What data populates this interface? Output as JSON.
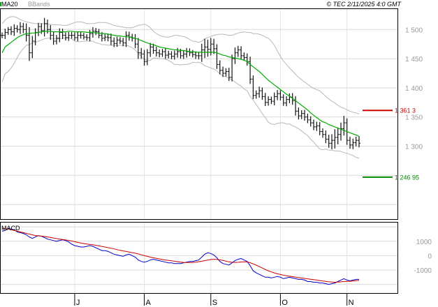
{
  "chart_data": [
    {
      "type": "ohlc",
      "title": "",
      "legend": {
        "ma_label": "MA20",
        "bb_label": "BBands"
      },
      "credit": "© TEC 2/11/2025 4:0 GMT",
      "x_ticks": [
        {
          "label": "J",
          "index": 24
        },
        {
          "label": "A",
          "index": 47
        },
        {
          "label": "S",
          "index": 69
        },
        {
          "label": "O",
          "index": 92
        },
        {
          "label": "N",
          "index": 114
        }
      ],
      "y_ticks": [
        {
          "label": "1 500",
          "value": 1.5
        },
        {
          "label": "1 450",
          "value": 1.45
        },
        {
          "label": "1 400",
          "value": 1.4
        },
        {
          "label": "1 350",
          "value": 1.35
        },
        {
          "label": "1 300",
          "value": 1.3
        }
      ],
      "ylim": [
        1.175,
        1.535
      ],
      "markers": [
        {
          "label": "1 361 3",
          "value": 1.3613,
          "color": "#cc0000"
        },
        {
          "label": "1 246 95",
          "value": 1.24695,
          "color": "#008800"
        }
      ],
      "series": {
        "close": [
          1.49,
          1.495,
          1.5,
          1.496,
          1.502,
          1.5,
          1.505,
          1.5,
          1.49,
          1.46,
          1.48,
          1.495,
          1.505,
          1.498,
          1.51,
          1.5,
          1.49,
          1.48,
          1.485,
          1.495,
          1.49,
          1.486,
          1.49,
          1.49,
          1.486,
          1.49,
          1.49,
          1.487,
          1.486,
          1.493,
          1.497,
          1.496,
          1.49,
          1.485,
          1.487,
          1.486,
          1.48,
          1.476,
          1.482,
          1.48,
          1.477,
          1.49,
          1.487,
          1.485,
          1.475,
          1.46,
          1.458,
          1.445,
          1.46,
          1.47,
          1.464,
          1.46,
          1.458,
          1.462,
          1.456,
          1.458,
          1.454,
          1.458,
          1.462,
          1.455,
          1.458,
          1.462,
          1.46,
          1.457,
          1.455,
          1.455,
          1.465,
          1.47,
          1.466,
          1.475,
          1.467,
          1.44,
          1.43,
          1.425,
          1.428,
          1.418,
          1.45,
          1.46,
          1.465,
          1.455,
          1.452,
          1.445,
          1.415,
          1.387,
          1.39,
          1.395,
          1.385,
          1.375,
          1.38,
          1.377,
          1.385,
          1.39,
          1.384,
          1.374,
          1.38,
          1.384,
          1.378,
          1.36,
          1.352,
          1.356,
          1.35,
          1.345,
          1.34,
          1.333,
          1.335,
          1.325,
          1.32,
          1.312,
          1.305,
          1.31,
          1.315,
          1.32,
          1.33,
          1.34,
          1.31,
          1.302,
          1.306,
          1.31,
          1.305
        ],
        "ma20": [
          1.46,
          1.47,
          1.474,
          1.478,
          1.482,
          1.486,
          1.489,
          1.491,
          1.493,
          1.493,
          1.494,
          1.494,
          1.495,
          1.496,
          1.497,
          1.497,
          1.497,
          1.496,
          1.496,
          1.496,
          1.496,
          1.496,
          1.497,
          1.497,
          1.496,
          1.496,
          1.496,
          1.496,
          1.495,
          1.495,
          1.495,
          1.494,
          1.494,
          1.493,
          1.493,
          1.492,
          1.491,
          1.49,
          1.489,
          1.489,
          1.488,
          1.488,
          1.487,
          1.486,
          1.485,
          1.483,
          1.481,
          1.479,
          1.477,
          1.475,
          1.474,
          1.472,
          1.47,
          1.469,
          1.468,
          1.467,
          1.466,
          1.465,
          1.465,
          1.464,
          1.464,
          1.463,
          1.462,
          1.462,
          1.461,
          1.461,
          1.461,
          1.461,
          1.461,
          1.461,
          1.461,
          1.46,
          1.458,
          1.456,
          1.455,
          1.453,
          1.452,
          1.451,
          1.45,
          1.449,
          1.447,
          1.445,
          1.44,
          1.436,
          1.432,
          1.428,
          1.423,
          1.418,
          1.413,
          1.409,
          1.405,
          1.401,
          1.397,
          1.393,
          1.389,
          1.386,
          1.382,
          1.378,
          1.374,
          1.37,
          1.366,
          1.362,
          1.357,
          1.353,
          1.349,
          1.345,
          1.342,
          1.34,
          1.337,
          1.335,
          1.333,
          1.331,
          1.329,
          1.327,
          1.325,
          1.323,
          1.321,
          1.319,
          1.317
        ],
        "bb_upper": [
          1.51,
          1.516,
          1.52,
          1.522,
          1.522,
          1.52,
          1.517,
          1.515,
          1.513,
          1.512,
          1.511,
          1.51,
          1.51,
          1.51,
          1.51,
          1.509,
          1.509,
          1.508,
          1.508,
          1.508,
          1.507,
          1.507,
          1.508,
          1.51,
          1.512,
          1.513,
          1.513,
          1.512,
          1.51,
          1.51,
          1.51,
          1.511,
          1.512,
          1.512,
          1.512,
          1.511,
          1.509,
          1.507,
          1.506,
          1.505,
          1.504,
          1.503,
          1.503,
          1.503,
          1.505,
          1.507,
          1.508,
          1.509,
          1.507,
          1.503,
          1.497,
          1.493,
          1.49,
          1.488,
          1.487,
          1.487,
          1.488,
          1.49,
          1.49,
          1.489,
          1.488,
          1.486,
          1.483,
          1.48,
          1.479,
          1.478,
          1.48,
          1.484,
          1.486,
          1.488,
          1.49,
          1.491,
          1.492,
          1.492,
          1.491,
          1.49,
          1.49,
          1.492,
          1.494,
          1.495,
          1.496,
          1.495,
          1.495,
          1.493,
          1.493,
          1.492,
          1.49,
          1.487,
          1.485,
          1.48,
          1.473,
          1.463,
          1.454,
          1.446,
          1.44,
          1.434,
          1.429,
          1.423,
          1.418,
          1.414,
          1.41,
          1.406,
          1.402,
          1.399,
          1.397,
          1.395,
          1.39,
          1.385,
          1.381,
          1.377,
          1.374,
          1.37,
          1.367,
          1.365,
          1.362,
          1.36,
          1.358,
          1.357,
          1.355
        ],
        "bb_lower": [
          1.41,
          1.424,
          1.428,
          1.434,
          1.442,
          1.452,
          1.461,
          1.467,
          1.473,
          1.474,
          1.477,
          1.478,
          1.48,
          1.482,
          1.484,
          1.485,
          1.485,
          1.484,
          1.484,
          1.484,
          1.485,
          1.485,
          1.486,
          1.484,
          1.48,
          1.479,
          1.479,
          1.48,
          1.48,
          1.48,
          1.48,
          1.477,
          1.476,
          1.474,
          1.474,
          1.473,
          1.473,
          1.473,
          1.472,
          1.473,
          1.472,
          1.473,
          1.471,
          1.469,
          1.465,
          1.459,
          1.454,
          1.449,
          1.447,
          1.447,
          1.451,
          1.451,
          1.45,
          1.45,
          1.449,
          1.447,
          1.444,
          1.44,
          1.44,
          1.439,
          1.44,
          1.44,
          1.441,
          1.444,
          1.443,
          1.444,
          1.442,
          1.438,
          1.436,
          1.434,
          1.432,
          1.429,
          1.424,
          1.42,
          1.419,
          1.416,
          1.414,
          1.41,
          1.406,
          1.403,
          1.398,
          1.395,
          1.385,
          1.379,
          1.371,
          1.364,
          1.356,
          1.349,
          1.341,
          1.338,
          1.337,
          1.339,
          1.34,
          1.34,
          1.338,
          1.338,
          1.335,
          1.333,
          1.33,
          1.326,
          1.322,
          1.318,
          1.312,
          1.307,
          1.301,
          1.295,
          1.294,
          1.295,
          1.293,
          1.293,
          1.292,
          1.292,
          1.291,
          1.289,
          1.288,
          1.286,
          1.284,
          1.281,
          1.279
        ],
        "ranges": [
          0.014,
          0.018,
          0.012,
          0.016,
          0.02,
          0.015,
          0.022,
          0.018,
          0.03,
          0.04,
          0.026,
          0.02,
          0.018,
          0.016,
          0.028,
          0.02,
          0.022,
          0.018,
          0.016,
          0.02,
          0.018,
          0.014,
          0.016,
          0.016,
          0.014,
          0.018,
          0.016,
          0.012,
          0.014,
          0.018,
          0.02,
          0.016,
          0.014,
          0.016,
          0.014,
          0.018,
          0.02,
          0.018,
          0.016,
          0.014,
          0.016,
          0.02,
          0.018,
          0.016,
          0.02,
          0.03,
          0.024,
          0.02,
          0.018,
          0.02,
          0.016,
          0.018,
          0.016,
          0.014,
          0.018,
          0.016,
          0.014,
          0.016,
          0.018,
          0.014,
          0.016,
          0.018,
          0.016,
          0.014,
          0.016,
          0.018,
          0.03,
          0.04,
          0.036,
          0.03,
          0.026,
          0.022,
          0.02,
          0.018,
          0.016,
          0.018,
          0.02,
          0.026,
          0.02,
          0.018,
          0.016,
          0.02,
          0.024,
          0.018,
          0.016,
          0.02,
          0.016,
          0.018,
          0.016,
          0.014,
          0.02,
          0.018,
          0.016,
          0.014,
          0.016,
          0.018,
          0.02,
          0.022,
          0.018,
          0.016,
          0.018,
          0.016,
          0.018,
          0.016,
          0.02,
          0.018,
          0.016,
          0.02,
          0.022,
          0.03,
          0.04,
          0.034,
          0.03,
          0.034,
          0.022,
          0.018,
          0.02,
          0.018,
          0.02
        ]
      }
    },
    {
      "type": "line",
      "title": "MACD",
      "y_ticks": [
        {
          "label": "1000",
          "value": 1000
        },
        {
          "label": "0",
          "value": 0
        },
        {
          "label": "-1000",
          "value": -1000
        }
      ],
      "ylim": [
        -2600,
        2300
      ],
      "series": [
        {
          "name": "",
          "color": "#0000cc",
          "values": [
            1700,
            1750,
            1900,
            1850,
            1800,
            1650,
            1600,
            1550,
            1450,
            1300,
            1200,
            1300,
            1400,
            1350,
            1250,
            1150,
            1100,
            1050,
            1000,
            1050,
            1100,
            1050,
            950,
            800,
            700,
            650,
            600,
            600,
            650,
            700,
            650,
            550,
            450,
            350,
            350,
            300,
            200,
            100,
            50,
            0,
            -50,
            50,
            100,
            0,
            -100,
            -300,
            -400,
            -450,
            -400,
            -300,
            -250,
            -300,
            -350,
            -400,
            -450,
            -500,
            -500,
            -550,
            -550,
            -550,
            -500,
            -450,
            -400,
            -400,
            -350,
            -300,
            -100,
            100,
            200,
            150,
            50,
            -150,
            -400,
            -550,
            -600,
            -650,
            -500,
            -350,
            -250,
            -200,
            -300,
            -400,
            -700,
            -1050,
            -1200,
            -1300,
            -1400,
            -1500,
            -1500,
            -1550,
            -1500,
            -1450,
            -1500,
            -1600,
            -1550,
            -1500,
            -1550,
            -1600,
            -1650,
            -1650,
            -1700,
            -1800,
            -1800,
            -1850,
            -1850,
            -1900,
            -1900,
            -1950,
            -2000,
            -1950,
            -1900,
            -1800,
            -1700,
            -1600,
            -1700,
            -1750,
            -1700,
            -1650,
            -1650
          ]
        },
        {
          "name": "",
          "color": "#cc0000",
          "values": [
            1900,
            1880,
            1850,
            1800,
            1750,
            1700,
            1650,
            1600,
            1550,
            1500,
            1450,
            1400,
            1380,
            1360,
            1330,
            1300,
            1270,
            1230,
            1190,
            1150,
            1120,
            1090,
            1060,
            1020,
            970,
            920,
            880,
            840,
            810,
            780,
            760,
            720,
            680,
            640,
            600,
            560,
            520,
            470,
            420,
            370,
            330,
            290,
            250,
            210,
            170,
            120,
            60,
            0,
            -50,
            -100,
            -150,
            -190,
            -230,
            -270,
            -300,
            -330,
            -360,
            -390,
            -420,
            -450,
            -470,
            -480,
            -480,
            -470,
            -450,
            -420,
            -390,
            -350,
            -300,
            -270,
            -250,
            -260,
            -290,
            -330,
            -380,
            -430,
            -460,
            -470,
            -460,
            -440,
            -430,
            -440,
            -490,
            -570,
            -660,
            -760,
            -860,
            -960,
            -1050,
            -1130,
            -1200,
            -1260,
            -1310,
            -1360,
            -1400,
            -1430,
            -1460,
            -1490,
            -1520,
            -1550,
            -1580,
            -1610,
            -1640,
            -1670,
            -1700,
            -1730,
            -1760,
            -1790,
            -1820,
            -1840,
            -1850,
            -1840,
            -1820,
            -1800,
            -1790,
            -1780,
            -1760,
            -1740,
            -1720
          ]
        }
      ],
      "legend": "none"
    }
  ]
}
